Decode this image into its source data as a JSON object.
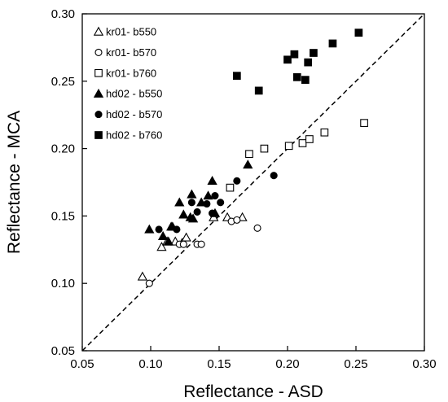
{
  "chart_data": {
    "type": "scatter",
    "xlabel": "Reflectance - ASD",
    "ylabel": "Reflectance - MCA",
    "xlim": [
      0.05,
      0.3
    ],
    "ylim": [
      0.05,
      0.3
    ],
    "x_ticks": [
      "0.05",
      "0.10",
      "0.15",
      "0.20",
      "0.25",
      "0.30"
    ],
    "y_ticks": [
      "0.05",
      "0.10",
      "0.15",
      "0.20",
      "0.25",
      "0.30"
    ],
    "reference_line": {
      "style": "dashed",
      "from": [
        0.05,
        0.05
      ],
      "to": [
        0.3,
        0.3
      ]
    },
    "legend_placement": "top-left",
    "grid": false,
    "series": [
      {
        "name": "kr01- b550",
        "marker": "triangle-open",
        "points": [
          [
            0.094,
            0.105
          ],
          [
            0.108,
            0.127
          ],
          [
            0.112,
            0.131
          ],
          [
            0.118,
            0.131
          ],
          [
            0.123,
            0.13
          ],
          [
            0.126,
            0.134
          ],
          [
            0.146,
            0.149
          ],
          [
            0.156,
            0.149
          ],
          [
            0.167,
            0.149
          ]
        ]
      },
      {
        "name": "kr01- b570",
        "marker": "circle-open",
        "points": [
          [
            0.099,
            0.1
          ],
          [
            0.121,
            0.129
          ],
          [
            0.124,
            0.129
          ],
          [
            0.134,
            0.129
          ],
          [
            0.137,
            0.129
          ],
          [
            0.159,
            0.146
          ],
          [
            0.163,
            0.147
          ],
          [
            0.178,
            0.141
          ]
        ]
      },
      {
        "name": "kr01- b760",
        "marker": "square-open",
        "points": [
          [
            0.158,
            0.171
          ],
          [
            0.172,
            0.196
          ],
          [
            0.183,
            0.2
          ],
          [
            0.201,
            0.202
          ],
          [
            0.211,
            0.204
          ],
          [
            0.216,
            0.207
          ],
          [
            0.227,
            0.212
          ],
          [
            0.256,
            0.219
          ]
        ]
      },
      {
        "name": "hd02 - b550",
        "marker": "triangle-filled",
        "points": [
          [
            0.099,
            0.14
          ],
          [
            0.109,
            0.135
          ],
          [
            0.113,
            0.131
          ],
          [
            0.115,
            0.142
          ],
          [
            0.116,
            0.142
          ],
          [
            0.121,
            0.16
          ],
          [
            0.124,
            0.151
          ],
          [
            0.129,
            0.149
          ],
          [
            0.13,
            0.166
          ],
          [
            0.131,
            0.148
          ],
          [
            0.137,
            0.16
          ],
          [
            0.142,
            0.165
          ],
          [
            0.145,
            0.176
          ],
          [
            0.147,
            0.152
          ],
          [
            0.171,
            0.188
          ]
        ]
      },
      {
        "name": "hd02 - b570",
        "marker": "circle-filled",
        "points": [
          [
            0.106,
            0.14
          ],
          [
            0.119,
            0.14
          ],
          [
            0.13,
            0.16
          ],
          [
            0.134,
            0.153
          ],
          [
            0.141,
            0.159
          ],
          [
            0.145,
            0.152
          ],
          [
            0.147,
            0.165
          ],
          [
            0.151,
            0.16
          ],
          [
            0.163,
            0.176
          ],
          [
            0.19,
            0.18
          ]
        ]
      },
      {
        "name": "hd02 - b760",
        "marker": "square-filled",
        "points": [
          [
            0.163,
            0.254
          ],
          [
            0.179,
            0.243
          ],
          [
            0.2,
            0.266
          ],
          [
            0.205,
            0.27
          ],
          [
            0.207,
            0.253
          ],
          [
            0.213,
            0.251
          ],
          [
            0.215,
            0.264
          ],
          [
            0.219,
            0.271
          ],
          [
            0.233,
            0.278
          ],
          [
            0.252,
            0.286
          ]
        ]
      }
    ]
  }
}
